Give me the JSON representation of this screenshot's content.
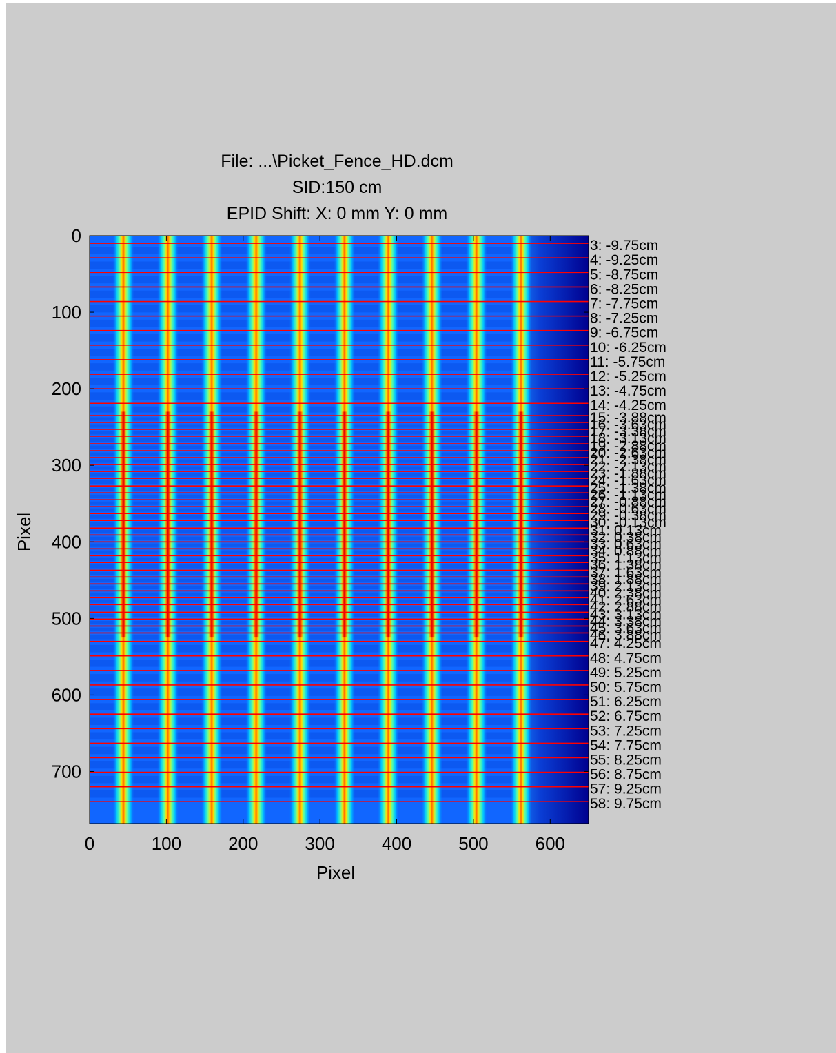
{
  "chart_data": {
    "type": "heatmap",
    "title_lines": [
      "File: ...\\Picket_Fence_HD.dcm",
      "SID:150 cm",
      "EPID Shift:  X: 0 mm Y: 0 mm"
    ],
    "xlabel": "Pixel",
    "ylabel": "Pixel",
    "xlim": [
      0,
      650
    ],
    "ylim": [
      768,
      0
    ],
    "xticks": [
      0,
      100,
      200,
      300,
      400,
      500,
      600
    ],
    "yticks": [
      0,
      100,
      200,
      300,
      400,
      500,
      600,
      700
    ],
    "colormap": "jet",
    "background_color": "#cccccc",
    "line_color": "#ff0000",
    "field_edge_x": 570,
    "pickets_x": [
      44,
      102,
      159,
      217,
      274,
      332,
      389,
      446,
      504,
      562
    ],
    "leaves": [
      {
        "label": "3: -9.75cm",
        "y": 10
      },
      {
        "label": "4: -9.25cm",
        "y": 29
      },
      {
        "label": "5: -8.75cm",
        "y": 48
      },
      {
        "label": "6: -8.25cm",
        "y": 67
      },
      {
        "label": "7: -7.75cm",
        "y": 86
      },
      {
        "label": "8: -7.25cm",
        "y": 105
      },
      {
        "label": "9: -6.75cm",
        "y": 124
      },
      {
        "label": "10: -6.25cm",
        "y": 143
      },
      {
        "label": "11: -5.75cm",
        "y": 162
      },
      {
        "label": "12: -5.25cm",
        "y": 181
      },
      {
        "label": "13: -4.75cm",
        "y": 200
      },
      {
        "label": "14: -4.25cm",
        "y": 219
      },
      {
        "label": "15: -3.88cm",
        "y": 235
      },
      {
        "label": "16: -3.63cm",
        "y": 244
      },
      {
        "label": "17: -3.38cm",
        "y": 253
      },
      {
        "label": "18: -3.13cm",
        "y": 262
      },
      {
        "label": "19: -2.88cm",
        "y": 272
      },
      {
        "label": "20: -2.63cm",
        "y": 281
      },
      {
        "label": "21: -2.38cm",
        "y": 290
      },
      {
        "label": "22: -2.13cm",
        "y": 299
      },
      {
        "label": "23: -1.88cm",
        "y": 308
      },
      {
        "label": "24: -1.63cm",
        "y": 317
      },
      {
        "label": "25: -1.38cm",
        "y": 327
      },
      {
        "label": "26: -1.13cm",
        "y": 336
      },
      {
        "label": "27: -0.88cm",
        "y": 345
      },
      {
        "label": "28: -0.63cm",
        "y": 354
      },
      {
        "label": "29: -0.38cm",
        "y": 363
      },
      {
        "label": "30: -0.13cm",
        "y": 372
      },
      {
        "label": "31: 0.13cm",
        "y": 382
      },
      {
        "label": "32: 0.38cm",
        "y": 391
      },
      {
        "label": "33: 0.63cm",
        "y": 400
      },
      {
        "label": "34: 0.88cm",
        "y": 409
      },
      {
        "label": "35: 1.13cm",
        "y": 418
      },
      {
        "label": "36: 1.38cm",
        "y": 427
      },
      {
        "label": "37: 1.63cm",
        "y": 437
      },
      {
        "label": "38: 1.88cm",
        "y": 446
      },
      {
        "label": "39: 2.13cm",
        "y": 455
      },
      {
        "label": "40: 2.38cm",
        "y": 464
      },
      {
        "label": "41: 2.63cm",
        "y": 473
      },
      {
        "label": "42: 2.88cm",
        "y": 482
      },
      {
        "label": "43: 3.13cm",
        "y": 492
      },
      {
        "label": "44: 3.38cm",
        "y": 501
      },
      {
        "label": "45: 3.63cm",
        "y": 510
      },
      {
        "label": "46: 3.88cm",
        "y": 519
      },
      {
        "label": "47: 4.25cm",
        "y": 530
      },
      {
        "label": "48: 4.75cm",
        "y": 549
      },
      {
        "label": "49: 5.25cm",
        "y": 568
      },
      {
        "label": "50: 5.75cm",
        "y": 587
      },
      {
        "label": "51: 6.25cm",
        "y": 606
      },
      {
        "label": "52: 6.75cm",
        "y": 625
      },
      {
        "label": "53: 7.25cm",
        "y": 644
      },
      {
        "label": "54: 7.75cm",
        "y": 663
      },
      {
        "label": "55: 8.25cm",
        "y": 682
      },
      {
        "label": "56: 8.75cm",
        "y": 701
      },
      {
        "label": "57: 9.25cm",
        "y": 720
      },
      {
        "label": "58: 9.75cm",
        "y": 739
      }
    ]
  }
}
